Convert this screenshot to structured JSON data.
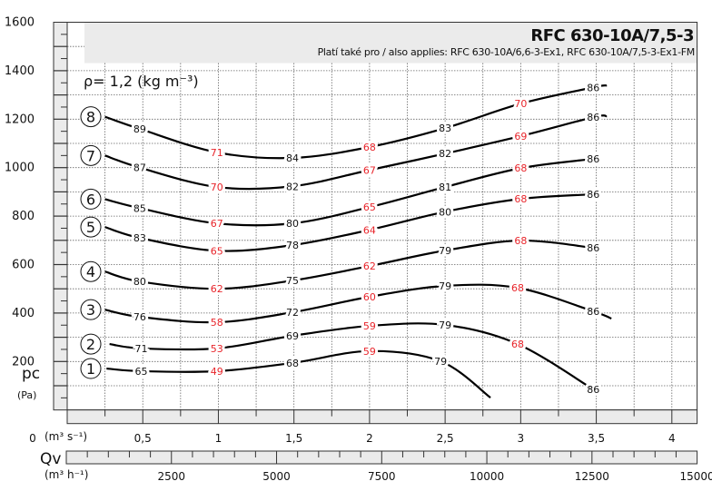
{
  "chart_data": {
    "type": "line",
    "title": "RFC 630-10A/7,5-3",
    "subtitle": "Platí také pro / also applies: RFC 630-10A/6,6-3-Ex1, RFC 630-10A/7,5-3-Ex1-FM",
    "density_note": "ρ= 1,2 (kg m⁻³)",
    "ylabel": "pc",
    "yunit": "(Pa)",
    "xlabel": "Qv",
    "xunit": "(m³ s⁻¹)",
    "x2unit": "(m³ h⁻¹)",
    "ylim": [
      0,
      1600
    ],
    "xlim": [
      0,
      4.167
    ],
    "grid": true,
    "yticks": [
      "1600",
      "1400",
      "1200",
      "1000",
      "800",
      "600",
      "400",
      "200"
    ],
    "xticks": [
      "0",
      "0,5",
      "1",
      "1,5",
      "2",
      "2,5",
      "3",
      "3,5",
      "4"
    ],
    "x2ticks": [
      "2500",
      "5000",
      "7500",
      "10000",
      "12500",
      "15000"
    ],
    "label_colors": {
      "black": "#111111",
      "red": "#e8242a"
    },
    "series": [
      {
        "name": "8",
        "points": [
          {
            "q": 0.25,
            "p": 1210
          },
          {
            "q": 0.48,
            "p": 1160,
            "label": "89",
            "color": "black"
          },
          {
            "q": 0.99,
            "p": 1063,
            "label": "71",
            "color": "red"
          },
          {
            "q": 1.49,
            "p": 1040,
            "label": "84",
            "color": "black"
          },
          {
            "q": 2.0,
            "p": 1085,
            "label": "68",
            "color": "red"
          },
          {
            "q": 2.5,
            "p": 1163,
            "label": "83",
            "color": "black"
          },
          {
            "q": 3.0,
            "p": 1264,
            "label": "70",
            "color": "red"
          },
          {
            "q": 3.48,
            "p": 1331,
            "label": "86",
            "color": "black"
          },
          {
            "q": 3.57,
            "p": 1339
          }
        ]
      },
      {
        "name": "7",
        "points": [
          {
            "q": 0.25,
            "p": 1050
          },
          {
            "q": 0.48,
            "p": 1000,
            "label": "87",
            "color": "black"
          },
          {
            "q": 0.99,
            "p": 920,
            "label": "70",
            "color": "red"
          },
          {
            "q": 1.49,
            "p": 923,
            "label": "82",
            "color": "black"
          },
          {
            "q": 2.0,
            "p": 990,
            "label": "67",
            "color": "red"
          },
          {
            "q": 2.5,
            "p": 1058,
            "label": "82",
            "color": "black"
          },
          {
            "q": 3.0,
            "p": 1130,
            "label": "69",
            "color": "red"
          },
          {
            "q": 3.48,
            "p": 1208,
            "label": "86",
            "color": "black"
          },
          {
            "q": 3.57,
            "p": 1212
          }
        ]
      },
      {
        "name": "6",
        "points": [
          {
            "q": 0.25,
            "p": 870
          },
          {
            "q": 0.48,
            "p": 833,
            "label": "85",
            "color": "black"
          },
          {
            "q": 0.99,
            "p": 770,
            "label": "67",
            "color": "red"
          },
          {
            "q": 1.49,
            "p": 770,
            "label": "80",
            "color": "black"
          },
          {
            "q": 2.0,
            "p": 837,
            "label": "65",
            "color": "red"
          },
          {
            "q": 2.5,
            "p": 920,
            "label": "81",
            "color": "black"
          },
          {
            "q": 3.0,
            "p": 998,
            "label": "68",
            "color": "red"
          },
          {
            "q": 3.48,
            "p": 1036,
            "label": "86",
            "color": "black"
          }
        ]
      },
      {
        "name": "5",
        "points": [
          {
            "q": 0.25,
            "p": 755
          },
          {
            "q": 0.48,
            "p": 710,
            "label": "83",
            "color": "black"
          },
          {
            "q": 0.99,
            "p": 657,
            "label": "65",
            "color": "red"
          },
          {
            "q": 1.49,
            "p": 680,
            "label": "78",
            "color": "black"
          },
          {
            "q": 2.0,
            "p": 743,
            "label": "64",
            "color": "red"
          },
          {
            "q": 2.5,
            "p": 818,
            "label": "80",
            "color": "black"
          },
          {
            "q": 3.0,
            "p": 871,
            "label": "68",
            "color": "red"
          },
          {
            "q": 3.48,
            "p": 890,
            "label": "86",
            "color": "black"
          }
        ]
      },
      {
        "name": "4",
        "points": [
          {
            "q": 0.25,
            "p": 571
          },
          {
            "q": 0.48,
            "p": 530,
            "label": "80",
            "color": "black"
          },
          {
            "q": 0.99,
            "p": 500,
            "label": "62",
            "color": "red"
          },
          {
            "q": 1.49,
            "p": 534,
            "label": "75",
            "color": "black"
          },
          {
            "q": 2.0,
            "p": 594,
            "label": "62",
            "color": "red"
          },
          {
            "q": 2.5,
            "p": 658,
            "label": "79",
            "color": "black"
          },
          {
            "q": 3.0,
            "p": 699,
            "label": "68",
            "color": "red"
          },
          {
            "q": 3.48,
            "p": 669,
            "label": "86",
            "color": "black"
          }
        ]
      },
      {
        "name": "3",
        "points": [
          {
            "q": 0.25,
            "p": 414
          },
          {
            "q": 0.48,
            "p": 384,
            "label": "76",
            "color": "black"
          },
          {
            "q": 0.99,
            "p": 362,
            "label": "58",
            "color": "red"
          },
          {
            "q": 1.49,
            "p": 403,
            "label": "72",
            "color": "black"
          },
          {
            "q": 2.0,
            "p": 467,
            "label": "60",
            "color": "red"
          },
          {
            "q": 2.5,
            "p": 512,
            "label": "79",
            "color": "black"
          },
          {
            "q": 2.98,
            "p": 504,
            "label": "68",
            "color": "red"
          },
          {
            "q": 3.48,
            "p": 407,
            "label": "86",
            "color": "black"
          },
          {
            "q": 3.6,
            "p": 377
          }
        ]
      },
      {
        "name": "2",
        "points": [
          {
            "q": 0.28,
            "p": 272
          },
          {
            "q": 0.49,
            "p": 254,
            "label": "71",
            "color": "black"
          },
          {
            "q": 0.99,
            "p": 254,
            "label": "53",
            "color": "red"
          },
          {
            "q": 1.49,
            "p": 306,
            "label": "69",
            "color": "black"
          },
          {
            "q": 2.0,
            "p": 347,
            "label": "59",
            "color": "red"
          },
          {
            "q": 2.5,
            "p": 351,
            "label": "79",
            "color": "black"
          },
          {
            "q": 2.98,
            "p": 272,
            "label": "68",
            "color": "red"
          },
          {
            "q": 3.48,
            "p": 85,
            "label": "86",
            "color": "black"
          }
        ]
      },
      {
        "name": "1",
        "points": [
          {
            "q": 0.26,
            "p": 171
          },
          {
            "q": 0.49,
            "p": 160,
            "label": "65",
            "color": "black"
          },
          {
            "q": 0.99,
            "p": 160,
            "label": "49",
            "color": "red"
          },
          {
            "q": 1.49,
            "p": 194,
            "label": "68",
            "color": "black"
          },
          {
            "q": 2.0,
            "p": 243,
            "label": "59",
            "color": "red"
          },
          {
            "q": 2.47,
            "p": 201,
            "label": "79",
            "color": "black"
          },
          {
            "q": 2.8,
            "p": 51
          }
        ]
      }
    ]
  }
}
